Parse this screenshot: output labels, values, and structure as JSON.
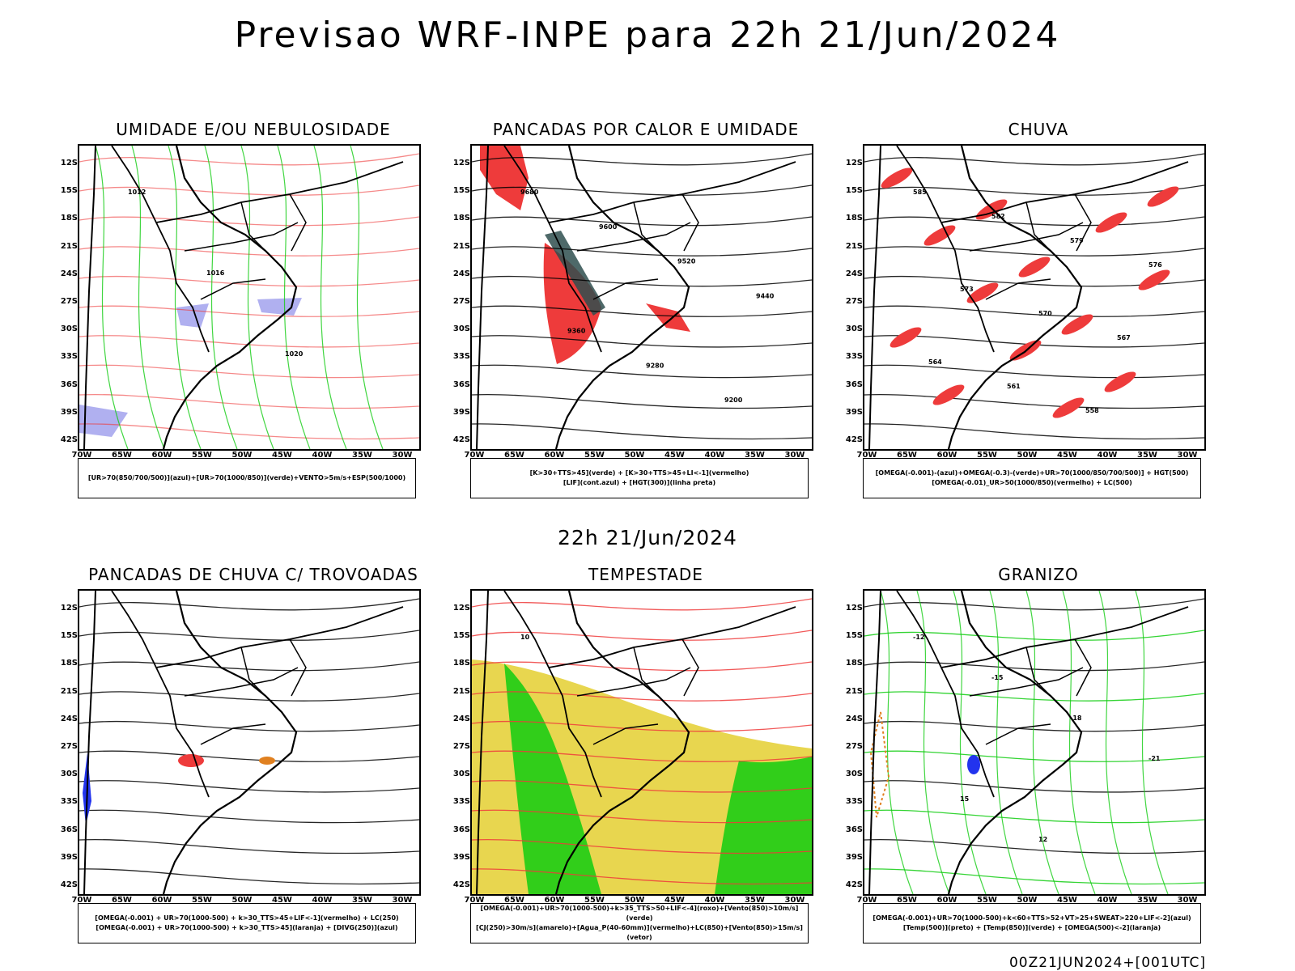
{
  "main_title": "Previsao WRF-INPE  para 22h 21/Jun/2024",
  "mid_date": "22h 21/Jun/2024",
  "footer": "00Z21JUN2024+[001UTC]",
  "lat_labels": [
    "12S",
    "15S",
    "18S",
    "21S",
    "24S",
    "27S",
    "30S",
    "33S",
    "36S",
    "39S",
    "42S"
  ],
  "lon_labels": [
    "70W",
    "65W",
    "60W",
    "55W",
    "50W",
    "45W",
    "40W",
    "35W",
    "30W"
  ],
  "panels": [
    {
      "title": "UMIDADE E/OU NEBULOSIDADE",
      "legend": [
        "[UR>70(850/700/500)](azul)+[UR>70(1000/850)](verde)+VENTO>5m/s+ESP(500/1000)"
      ],
      "contour_labels": [
        "1012",
        "1016",
        "1020"
      ]
    },
    {
      "title": "PANCADAS POR CALOR E UMIDADE",
      "legend": [
        "[K>30+TTS>45](verde) + [K>30+TTS>45+LI<-1](vermelho)",
        "[LIF](cont.azul) + [HGT(300)](linha preta)"
      ],
      "contour_labels": [
        "9680",
        "9600",
        "9520",
        "9440",
        "9360",
        "9280",
        "9200"
      ]
    },
    {
      "title": "CHUVA",
      "legend": [
        "[OMEGA(-0.001)-(azul)+OMEGA(-0.3)-(verde)+UR>70(1000/850/700/500)] + HGT(500)",
        "[OMEGA(-0.01)_UR>50(1000/850)(vermelho) + LC(500)"
      ],
      "contour_labels": [
        "585",
        "582",
        "579",
        "576",
        "573",
        "570",
        "567",
        "564",
        "561",
        "558"
      ]
    },
    {
      "title": "PANCADAS DE CHUVA C/ TROVOADAS",
      "legend": [
        "[OMEGA(-0.001) + UR>70(1000-500) + k>30_TTS>45+LIF<-1](vermelho) + LC(250)",
        "[OMEGA(-0.001) + UR>70(1000-500) + k>30_TTS>45](laranja) + [DIVG(250)](azul)"
      ],
      "contour_labels": []
    },
    {
      "title": "TEMPESTADE",
      "legend": [
        "[OMEGA(-0.001)+UR>70(1000-500)+k>35_TTS>50+LIF<-4](roxo)+[Vento(850)>10m/s](verde)",
        "[CJ(250)>30m/s](amarelo)+[Agua_P(40-60mm)](vermelho)+LC(850)+[Vento(850)>15m/s](vetor)"
      ],
      "contour_labels": [
        "10"
      ]
    },
    {
      "title": "GRANIZO",
      "legend": [
        "[OMEGA(-0.001)+UR>70(1000-500)+k<60+TTS>52+VT>25+SWEAT>220+LIF<-2](azul)",
        "[Temp(500)](preto) + [Temp(850)](verde) + [OMEGA(500)<-2](laranja)"
      ],
      "contour_labels": [
        "-12",
        "-15",
        "-18",
        "-21",
        "15",
        "12"
      ]
    }
  ],
  "colors": {
    "red": "#ee3b3b",
    "green": "#11cc11",
    "blue": "#2233ee",
    "lavender": "#b0b0f0",
    "yellow": "#e6d23c",
    "darkteal": "#2f4f4f",
    "orange": "#e08020"
  }
}
